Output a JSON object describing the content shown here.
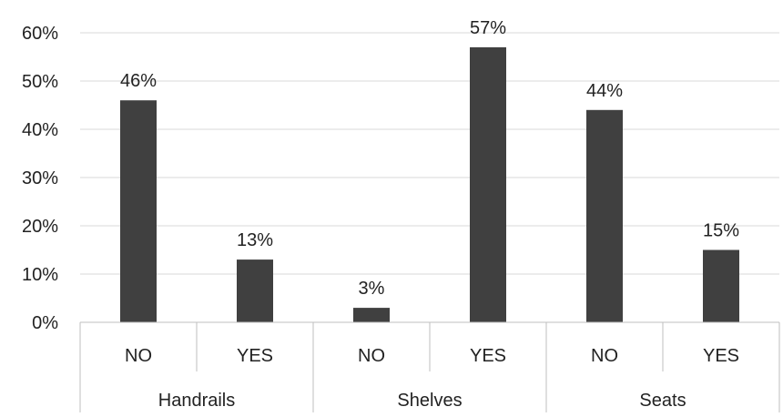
{
  "chart_data": {
    "type": "bar",
    "groups": [
      {
        "label": "Handrails",
        "categories": [
          "NO",
          "YES"
        ],
        "values": [
          46,
          13
        ]
      },
      {
        "label": "Shelves",
        "categories": [
          "NO",
          "YES"
        ],
        "values": [
          3,
          57
        ]
      },
      {
        "label": "Seats",
        "categories": [
          "NO",
          "YES"
        ],
        "values": [
          44,
          15
        ]
      }
    ],
    "value_labels": [
      "46%",
      "13%",
      "3%",
      "57%",
      "44%",
      "15%"
    ],
    "y_ticks": [
      "0%",
      "10%",
      "20%",
      "30%",
      "40%",
      "50%",
      "60%"
    ],
    "ylim": [
      0,
      60
    ],
    "grid": true,
    "bar_color": "#404040",
    "grid_color": "#d9d9d9",
    "axis_color": "#bfbfbf"
  }
}
